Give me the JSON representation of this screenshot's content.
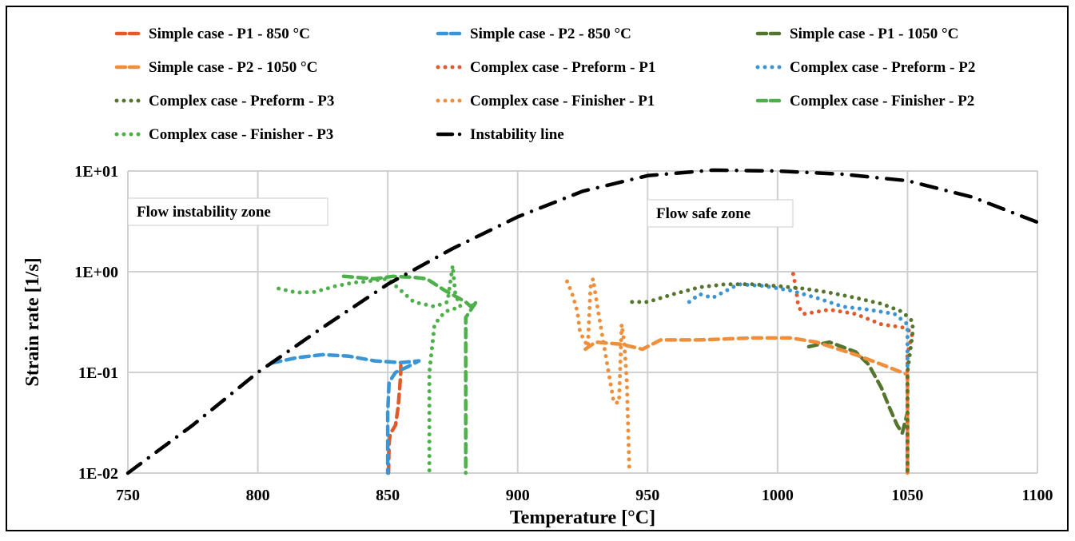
{
  "chart_data": {
    "type": "line",
    "title": "",
    "xlabel": "Temperature [°C]",
    "ylabel": "Strain rate [1/s]",
    "xlim": [
      750,
      1100
    ],
    "ylim": [
      0.01,
      10
    ],
    "yscale": "log",
    "grid": true,
    "legend_placement": "top",
    "x_ticks": [
      "750",
      "800",
      "850",
      "900",
      "950",
      "1000",
      "1050",
      "1100"
    ],
    "y_ticks": [
      "1E-02",
      "1E-01",
      "1E+00",
      "1E+01"
    ],
    "annotations": [
      "Flow instability zone",
      "Flow safe zone"
    ],
    "series": [
      {
        "name": "Simple case - P1 - 850 °C",
        "color": "#e15a2a",
        "style": "dashed",
        "x": [
          850.3,
          850.5,
          851,
          852,
          853,
          854,
          854.6,
          855,
          855
        ],
        "y": [
          0.01,
          0.02,
          0.025,
          0.027,
          0.03,
          0.045,
          0.07,
          0.1,
          0.12
        ]
      },
      {
        "name": "Simple case - P2 - 850 °C",
        "color": "#3a95d6",
        "style": "dashed",
        "x": [
          805.5,
          815,
          825,
          835,
          845,
          855,
          862,
          858,
          853,
          850.5,
          850,
          850
        ],
        "y": [
          0.124,
          0.14,
          0.15,
          0.145,
          0.13,
          0.125,
          0.13,
          0.115,
          0.1,
          0.08,
          0.04,
          0.01
        ]
      },
      {
        "name": "Simple case - P1 - 1050 °C",
        "color": "#55752f",
        "style": "dashed",
        "x": [
          1012,
          1020,
          1030,
          1035,
          1040,
          1043,
          1046,
          1048,
          1050,
          1050
        ],
        "y": [
          0.18,
          0.2,
          0.16,
          0.12,
          0.07,
          0.045,
          0.03,
          0.025,
          0.04,
          0.01
        ]
      },
      {
        "name": "Simple case - P2 - 1050 °C",
        "color": "#ef8f3c",
        "style": "dashed",
        "x": [
          926,
          930,
          940,
          948,
          955,
          970,
          990,
          1005,
          1015,
          1030,
          1040,
          1050,
          1050
        ],
        "y": [
          0.17,
          0.2,
          0.19,
          0.17,
          0.21,
          0.21,
          0.22,
          0.22,
          0.2,
          0.15,
          0.12,
          0.095,
          0.01
        ]
      },
      {
        "name": "Complex case - Preform - P1",
        "color": "#e15a2a",
        "style": "dotted",
        "x": [
          1006,
          1007,
          1008,
          1010,
          1020,
          1030,
          1040,
          1048,
          1052,
          1050,
          1050
        ],
        "y": [
          0.95,
          0.7,
          0.45,
          0.38,
          0.42,
          0.38,
          0.3,
          0.28,
          0.25,
          0.15,
          0.01
        ]
      },
      {
        "name": "Complex case - Preform - P2",
        "color": "#3a95d6",
        "style": "dotted",
        "x": [
          966,
          970,
          975,
          985,
          995,
          1005,
          1015,
          1025,
          1035,
          1045,
          1050,
          1050
        ],
        "y": [
          0.5,
          0.6,
          0.55,
          0.75,
          0.72,
          0.65,
          0.55,
          0.45,
          0.42,
          0.38,
          0.3,
          0.1
        ]
      },
      {
        "name": "Complex case - Preform - P3",
        "color": "#55752f",
        "style": "dotted",
        "x": [
          944,
          950,
          960,
          970,
          980,
          990,
          1000,
          1010,
          1020,
          1030,
          1040,
          1048,
          1052,
          1052,
          1050,
          1050
        ],
        "y": [
          0.5,
          0.5,
          0.6,
          0.7,
          0.75,
          0.75,
          0.72,
          0.68,
          0.62,
          0.55,
          0.48,
          0.4,
          0.32,
          0.25,
          0.1,
          0.01
        ]
      },
      {
        "name": "Complex case - Finisher - P1",
        "color": "#ef8f3c",
        "style": "dotted",
        "x": [
          919,
          921,
          923,
          924,
          927,
          928,
          929,
          931,
          933,
          935,
          937,
          939,
          940,
          941,
          942,
          943
        ],
        "y": [
          0.8,
          0.6,
          0.4,
          0.25,
          0.18,
          0.7,
          0.85,
          0.4,
          0.2,
          0.1,
          0.05,
          0.05,
          0.3,
          0.2,
          0.08,
          0.01
        ]
      },
      {
        "name": "Complex case - Finisher - P2",
        "color": "#4eb04a",
        "style": "dashed",
        "x": [
          833,
          845,
          852,
          860,
          865,
          872,
          880,
          882,
          884,
          880,
          880
        ],
        "y": [
          0.9,
          0.85,
          0.9,
          0.88,
          0.85,
          0.65,
          0.5,
          0.45,
          0.5,
          0.35,
          0.01
        ]
      },
      {
        "name": "Complex case - Finisher - P3",
        "color": "#4eb04a",
        "style": "dotted",
        "x": [
          808,
          815,
          822,
          830,
          837,
          842,
          850,
          860,
          868,
          873,
          875,
          876,
          878,
          872,
          868,
          866,
          866
        ],
        "y": [
          0.68,
          0.62,
          0.63,
          0.72,
          0.78,
          0.8,
          0.85,
          0.5,
          0.45,
          0.5,
          1.15,
          0.6,
          0.45,
          0.4,
          0.3,
          0.1,
          0.01
        ]
      },
      {
        "name": "Instability line",
        "color": "#000000",
        "style": "dashdot",
        "x": [
          750,
          775,
          800,
          825,
          850,
          875,
          900,
          925,
          950,
          975,
          1000,
          1025,
          1050,
          1075,
          1100
        ],
        "y": [
          0.01,
          0.03,
          0.1,
          0.28,
          0.75,
          1.7,
          3.5,
          6.3,
          9.0,
          10.2,
          10.0,
          9.3,
          8.0,
          5.5,
          3.1
        ]
      }
    ]
  }
}
